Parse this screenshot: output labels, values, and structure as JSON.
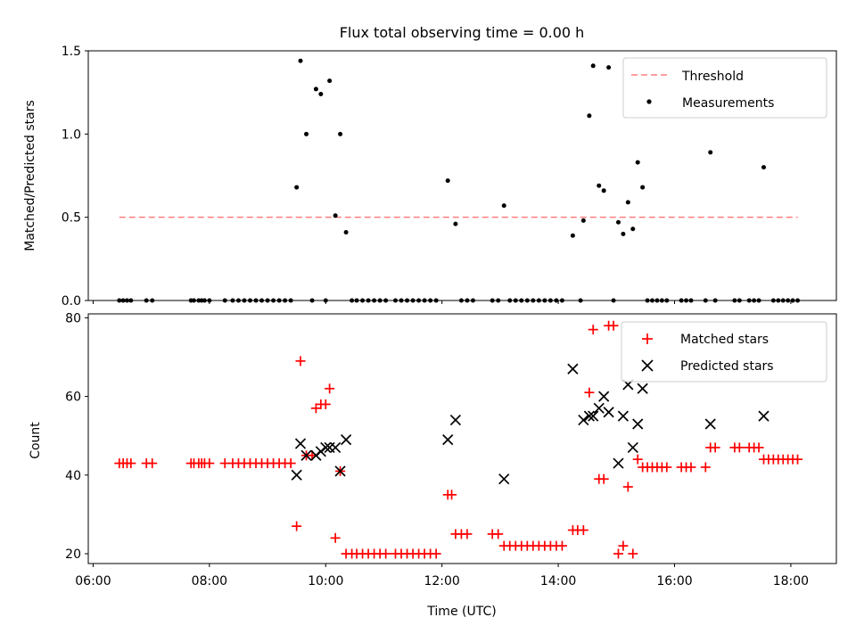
{
  "figure": {
    "title": "Flux total observing time = 0.00 h",
    "xlabel": "Time (UTC)"
  },
  "chart_data": [
    {
      "type": "scatter",
      "panel": "top",
      "title": "Flux total observing time = 0.00 h",
      "ylabel": "Matched/Predicted stars",
      "xlim": [
        "05:55",
        "18:47"
      ],
      "ylim": [
        0,
        1.5
      ],
      "xticks": [
        "06:00",
        "08:00",
        "10:00",
        "12:00",
        "14:00",
        "16:00",
        "18:00"
      ],
      "yticks": [
        "0.0",
        "0.5",
        "1.0",
        "1.5"
      ],
      "legend": {
        "placement": "top-right",
        "entries": [
          "Threshold",
          "Measurements"
        ]
      },
      "threshold": {
        "name": "Threshold",
        "value": 0.5,
        "x_start": "06:27",
        "x_end": "18:07",
        "color": "#ff7f7f",
        "style": "dashed"
      },
      "series": [
        {
          "name": "Measurements",
          "color": "#000000",
          "marker": "dot",
          "points": [
            [
              "06:27",
              0
            ],
            [
              "06:31",
              0
            ],
            [
              "06:35",
              0
            ],
            [
              "06:39",
              0
            ],
            [
              "06:55",
              0
            ],
            [
              "07:01",
              0
            ],
            [
              "07:41",
              0
            ],
            [
              "07:44",
              0
            ],
            [
              "07:49",
              0
            ],
            [
              "07:52",
              0
            ],
            [
              "07:55",
              0
            ],
            [
              "08:00",
              0
            ],
            [
              "08:16",
              0
            ],
            [
              "08:24",
              0
            ],
            [
              "08:30",
              0
            ],
            [
              "08:36",
              0
            ],
            [
              "08:42",
              0
            ],
            [
              "08:48",
              0
            ],
            [
              "08:54",
              0
            ],
            [
              "09:00",
              0
            ],
            [
              "09:06",
              0
            ],
            [
              "09:12",
              0
            ],
            [
              "09:18",
              0
            ],
            [
              "09:24",
              0
            ],
            [
              "09:30",
              0.68
            ],
            [
              "09:34",
              1.44
            ],
            [
              "09:40",
              1.0
            ],
            [
              "09:46",
              0
            ],
            [
              "09:50",
              1.27
            ],
            [
              "09:55",
              1.24
            ],
            [
              "10:00",
              0
            ],
            [
              "10:04",
              1.32
            ],
            [
              "10:10",
              0.51
            ],
            [
              "10:15",
              1.0
            ],
            [
              "10:21",
              0.41
            ],
            [
              "10:27",
              0
            ],
            [
              "10:32",
              0
            ],
            [
              "10:38",
              0
            ],
            [
              "10:44",
              0
            ],
            [
              "10:50",
              0
            ],
            [
              "10:56",
              0
            ],
            [
              "11:02",
              0
            ],
            [
              "11:12",
              0
            ],
            [
              "11:18",
              0
            ],
            [
              "11:24",
              0
            ],
            [
              "11:30",
              0
            ],
            [
              "11:36",
              0
            ],
            [
              "11:42",
              0
            ],
            [
              "11:48",
              0
            ],
            [
              "11:54",
              0
            ],
            [
              "12:06",
              0.72
            ],
            [
              "12:14",
              0.46
            ],
            [
              "12:20",
              0
            ],
            [
              "12:26",
              0
            ],
            [
              "12:32",
              0
            ],
            [
              "12:52",
              0
            ],
            [
              "12:58",
              0
            ],
            [
              "13:04",
              0.57
            ],
            [
              "13:10",
              0
            ],
            [
              "13:16",
              0
            ],
            [
              "13:22",
              0
            ],
            [
              "13:28",
              0
            ],
            [
              "13:34",
              0
            ],
            [
              "13:40",
              0
            ],
            [
              "13:46",
              0
            ],
            [
              "13:52",
              0
            ],
            [
              "13:58",
              0
            ],
            [
              "14:04",
              0
            ],
            [
              "14:15",
              0.39
            ],
            [
              "14:23",
              0
            ],
            [
              "14:26",
              0.48
            ],
            [
              "14:32",
              1.11
            ],
            [
              "14:36",
              1.41
            ],
            [
              "14:42",
              0.69
            ],
            [
              "14:47",
              0.66
            ],
            [
              "14:52",
              1.4
            ],
            [
              "14:57",
              0
            ],
            [
              "15:02",
              0.47
            ],
            [
              "15:07",
              0.4
            ],
            [
              "15:12",
              0.59
            ],
            [
              "15:17",
              0.43
            ],
            [
              "15:22",
              0.83
            ],
            [
              "15:27",
              0.68
            ],
            [
              "15:32",
              0
            ],
            [
              "15:37",
              0
            ],
            [
              "15:42",
              0
            ],
            [
              "15:47",
              0
            ],
            [
              "15:52",
              0
            ],
            [
              "16:07",
              0
            ],
            [
              "16:12",
              0
            ],
            [
              "16:17",
              0
            ],
            [
              "16:32",
              0
            ],
            [
              "16:37",
              0.89
            ],
            [
              "16:42",
              0
            ],
            [
              "17:02",
              0
            ],
            [
              "17:07",
              0
            ],
            [
              "17:17",
              0
            ],
            [
              "17:22",
              0
            ],
            [
              "17:27",
              0
            ],
            [
              "17:32",
              0.8
            ],
            [
              "17:42",
              0
            ],
            [
              "17:47",
              0
            ],
            [
              "17:52",
              0
            ],
            [
              "17:57",
              0
            ],
            [
              "18:02",
              0
            ],
            [
              "18:07",
              0
            ]
          ]
        }
      ]
    },
    {
      "type": "scatter",
      "panel": "bottom",
      "xlabel": "Time (UTC)",
      "ylabel": "Count",
      "xlim": [
        "05:55",
        "18:47"
      ],
      "ylim": [
        17.5,
        81
      ],
      "xticks": [
        "06:00",
        "08:00",
        "10:00",
        "12:00",
        "14:00",
        "16:00",
        "18:00"
      ],
      "yticks": [
        "20",
        "40",
        "60",
        "80"
      ],
      "legend": {
        "placement": "top-right",
        "entries": [
          "Matched stars",
          "Predicted stars"
        ]
      },
      "series": [
        {
          "name": "Matched stars",
          "color": "#ff0000",
          "marker": "plus",
          "points": [
            [
              "06:27",
              43
            ],
            [
              "06:31",
              43
            ],
            [
              "06:35",
              43
            ],
            [
              "06:39",
              43
            ],
            [
              "06:55",
              43
            ],
            [
              "07:01",
              43
            ],
            [
              "07:41",
              43
            ],
            [
              "07:44",
              43
            ],
            [
              "07:49",
              43
            ],
            [
              "07:52",
              43
            ],
            [
              "07:55",
              43
            ],
            [
              "08:00",
              43
            ],
            [
              "08:16",
              43
            ],
            [
              "08:24",
              43
            ],
            [
              "08:30",
              43
            ],
            [
              "08:36",
              43
            ],
            [
              "08:42",
              43
            ],
            [
              "08:48",
              43
            ],
            [
              "08:54",
              43
            ],
            [
              "09:00",
              43
            ],
            [
              "09:06",
              43
            ],
            [
              "09:12",
              43
            ],
            [
              "09:18",
              43
            ],
            [
              "09:24",
              43
            ],
            [
              "09:30",
              27
            ],
            [
              "09:34",
              69
            ],
            [
              "09:40",
              45
            ],
            [
              "09:46",
              45
            ],
            [
              "09:50",
              57
            ],
            [
              "09:55",
              58
            ],
            [
              "10:00",
              58
            ],
            [
              "10:04",
              62
            ],
            [
              "10:10",
              24
            ],
            [
              "10:15",
              41
            ],
            [
              "10:21",
              20
            ],
            [
              "10:27",
              20
            ],
            [
              "10:32",
              20
            ],
            [
              "10:38",
              20
            ],
            [
              "10:44",
              20
            ],
            [
              "10:50",
              20
            ],
            [
              "10:56",
              20
            ],
            [
              "11:02",
              20
            ],
            [
              "11:12",
              20
            ],
            [
              "11:18",
              20
            ],
            [
              "11:24",
              20
            ],
            [
              "11:30",
              20
            ],
            [
              "11:36",
              20
            ],
            [
              "11:42",
              20
            ],
            [
              "11:48",
              20
            ],
            [
              "11:54",
              20
            ],
            [
              "12:06",
              35
            ],
            [
              "12:10",
              35
            ],
            [
              "12:14",
              25
            ],
            [
              "12:20",
              25
            ],
            [
              "12:26",
              25
            ],
            [
              "12:52",
              25
            ],
            [
              "12:58",
              25
            ],
            [
              "13:04",
              22
            ],
            [
              "13:10",
              22
            ],
            [
              "13:16",
              22
            ],
            [
              "13:22",
              22
            ],
            [
              "13:28",
              22
            ],
            [
              "13:34",
              22
            ],
            [
              "13:40",
              22
            ],
            [
              "13:46",
              22
            ],
            [
              "13:52",
              22
            ],
            [
              "13:58",
              22
            ],
            [
              "14:04",
              22
            ],
            [
              "14:15",
              26
            ],
            [
              "14:20",
              26
            ],
            [
              "14:26",
              26
            ],
            [
              "14:32",
              61
            ],
            [
              "14:36",
              77
            ],
            [
              "14:42",
              39
            ],
            [
              "14:47",
              39
            ],
            [
              "14:52",
              78
            ],
            [
              "14:57",
              78
            ],
            [
              "15:02",
              20
            ],
            [
              "15:07",
              22
            ],
            [
              "15:12",
              37
            ],
            [
              "15:17",
              20
            ],
            [
              "15:22",
              44
            ],
            [
              "15:27",
              42
            ],
            [
              "15:32",
              42
            ],
            [
              "15:37",
              42
            ],
            [
              "15:42",
              42
            ],
            [
              "15:47",
              42
            ],
            [
              "15:52",
              42
            ],
            [
              "16:07",
              42
            ],
            [
              "16:12",
              42
            ],
            [
              "16:17",
              42
            ],
            [
              "16:32",
              42
            ],
            [
              "16:37",
              47
            ],
            [
              "16:42",
              47
            ],
            [
              "17:02",
              47
            ],
            [
              "17:07",
              47
            ],
            [
              "17:17",
              47
            ],
            [
              "17:22",
              47
            ],
            [
              "17:27",
              47
            ],
            [
              "17:32",
              44
            ],
            [
              "17:37",
              44
            ],
            [
              "17:42",
              44
            ],
            [
              "17:47",
              44
            ],
            [
              "17:52",
              44
            ],
            [
              "17:57",
              44
            ],
            [
              "18:02",
              44
            ],
            [
              "18:07",
              44
            ]
          ]
        },
        {
          "name": "Predicted stars",
          "color": "#000000",
          "marker": "cross",
          "points": [
            [
              "09:30",
              40
            ],
            [
              "09:34",
              48
            ],
            [
              "09:40",
              45
            ],
            [
              "09:50",
              45
            ],
            [
              "09:55",
              46
            ],
            [
              "10:00",
              47
            ],
            [
              "10:04",
              47
            ],
            [
              "10:10",
              47
            ],
            [
              "10:15",
              41
            ],
            [
              "10:21",
              49
            ],
            [
              "12:06",
              49
            ],
            [
              "12:14",
              54
            ],
            [
              "13:04",
              39
            ],
            [
              "14:15",
              67
            ],
            [
              "14:26",
              54
            ],
            [
              "14:32",
              55
            ],
            [
              "14:36",
              55
            ],
            [
              "14:42",
              57
            ],
            [
              "14:47",
              60
            ],
            [
              "14:52",
              56
            ],
            [
              "15:02",
              43
            ],
            [
              "15:07",
              55
            ],
            [
              "15:12",
              63
            ],
            [
              "15:17",
              47
            ],
            [
              "15:22",
              53
            ],
            [
              "15:27",
              62
            ],
            [
              "16:37",
              53
            ],
            [
              "17:32",
              55
            ]
          ]
        }
      ]
    }
  ]
}
